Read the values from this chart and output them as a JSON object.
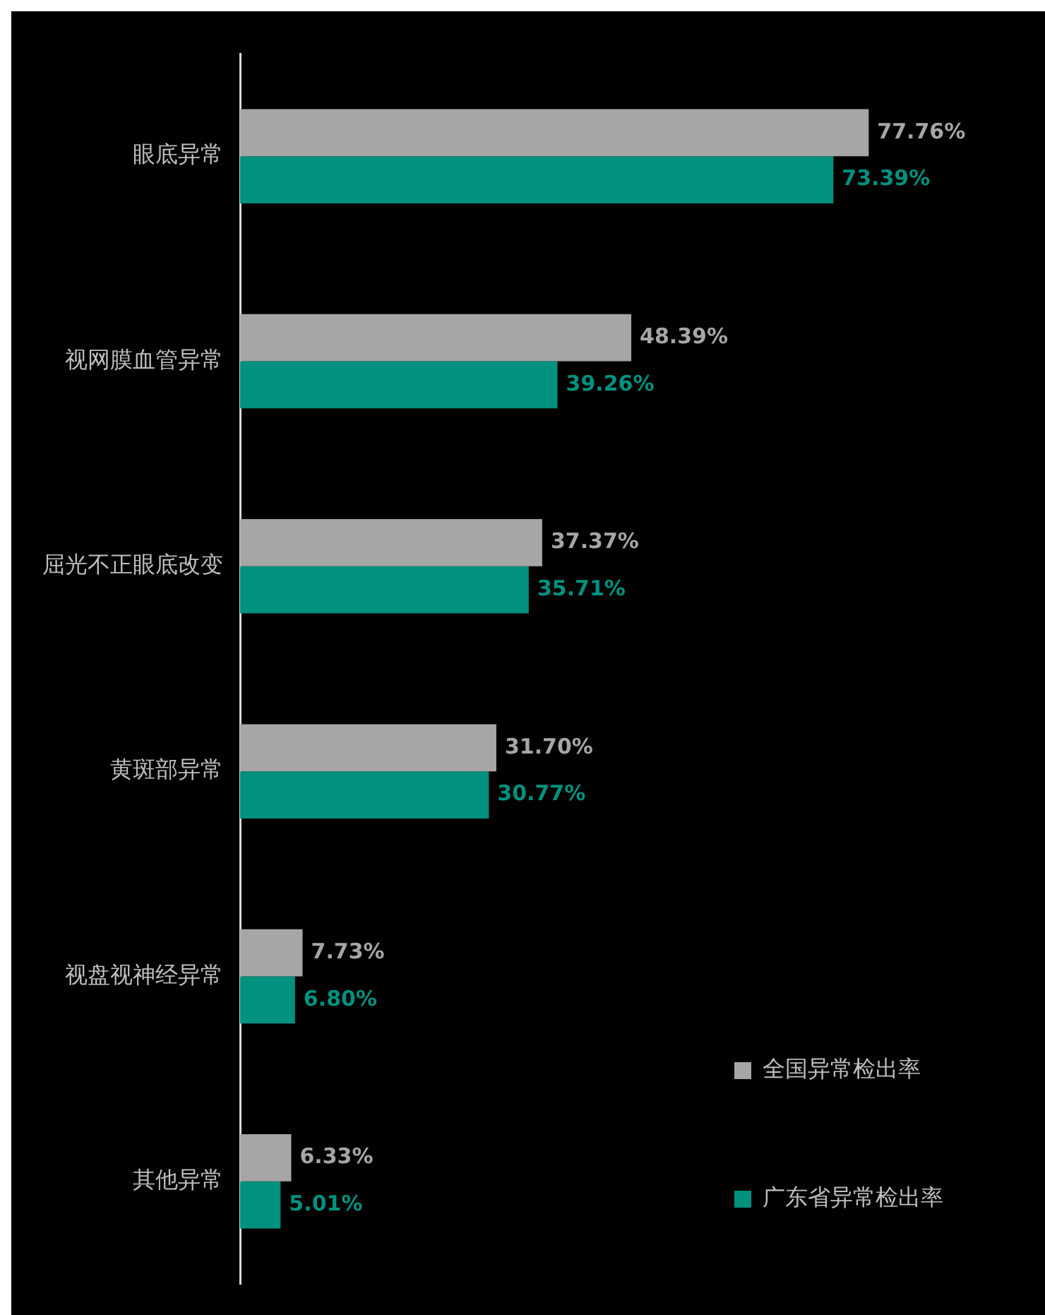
{
  "chart_data": {
    "type": "bar",
    "orientation": "horizontal",
    "categories": [
      "眼底异常",
      "视网膜血管异常",
      "屈光不正眼底改变",
      "黄斑部异常",
      "视盘视神经异常",
      "其他异常"
    ],
    "series": [
      {
        "name": "全国异常检出率",
        "color": "#a6a6a6",
        "values": [
          77.76,
          48.39,
          37.37,
          31.7,
          7.73,
          6.33
        ],
        "value_labels": [
          "77.76%",
          "48.39%",
          "37.37%",
          "31.70%",
          "7.73%",
          "6.33%"
        ]
      },
      {
        "name": "广东省异常检出率",
        "color": "#00917f",
        "values": [
          73.39,
          39.26,
          35.71,
          30.77,
          6.8,
          5.01
        ],
        "value_labels": [
          "73.39%",
          "39.26%",
          "35.71%",
          "30.77%",
          "6.80%",
          "5.01%"
        ]
      }
    ],
    "legend": "bottom right",
    "tick_labels": "y"
  }
}
